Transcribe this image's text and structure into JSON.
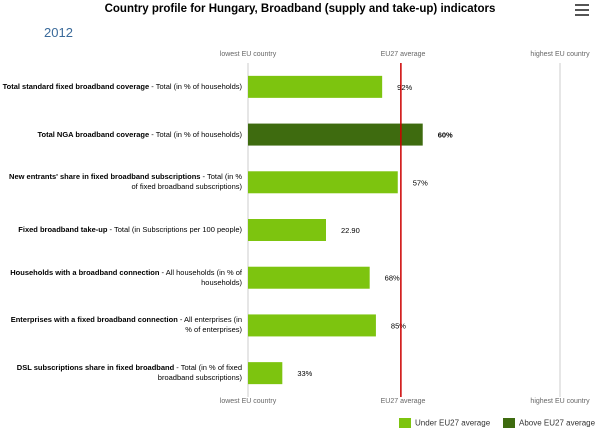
{
  "title": "Country profile for Hungary, Broadband (supply and take-up) indicators",
  "year": "2012",
  "axis_labels": {
    "min": "lowest EU country",
    "avg": "EU27 average",
    "max": "highest EU country"
  },
  "colors": {
    "under": "#7dc40f",
    "above": "#3e6b0f",
    "avg_line": "#cc0000",
    "axis_line": "#cccccc"
  },
  "legend": {
    "under": "Under EU27 average",
    "above": "Above EU27 average"
  },
  "chart_data": {
    "type": "bar",
    "orientation": "horizontal",
    "title": "Country profile for Hungary, Broadband (supply and take-up) indicators",
    "scale": "relative position between lowest EU country (0) and highest EU country (1)",
    "eu27_average_position": 0.49,
    "series": [
      {
        "name": "Under EU27 average",
        "color": "#7dc40f"
      },
      {
        "name": "Above EU27 average",
        "color": "#3e6b0f"
      }
    ],
    "rows": [
      {
        "bold": "Total standard fixed broadband coverage",
        "rest": " - Total (in % of households)",
        "value": 0.43,
        "label": "92%",
        "above": false
      },
      {
        "bold": "Total NGA broadband coverage",
        "rest": " - Total (in % of households)",
        "value": 0.56,
        "label": "60%",
        "above": true
      },
      {
        "bold": "New entrants' share in fixed broadband subscriptions",
        "rest": " - Total (in % of fixed broadband subscriptions)",
        "value": 0.48,
        "label": "57%",
        "above": false
      },
      {
        "bold": "Fixed broadband take-up",
        "rest": " - Total (in Subscriptions per 100 people)",
        "value": 0.25,
        "label": "22.90",
        "above": false
      },
      {
        "bold": "Households with a broadband connection",
        "rest": " - All households (in % of households)",
        "value": 0.39,
        "label": "68%",
        "above": false
      },
      {
        "bold": "Enterprises with a fixed broadband connection",
        "rest": " - All enterprises (in % of enterprises)",
        "value": 0.41,
        "label": "85%",
        "above": false
      },
      {
        "bold": "DSL subscriptions share in fixed broadband",
        "rest": " - Total (in % of fixed broadband subscriptions)",
        "value": 0.11,
        "label": "33%",
        "above": false
      }
    ]
  }
}
